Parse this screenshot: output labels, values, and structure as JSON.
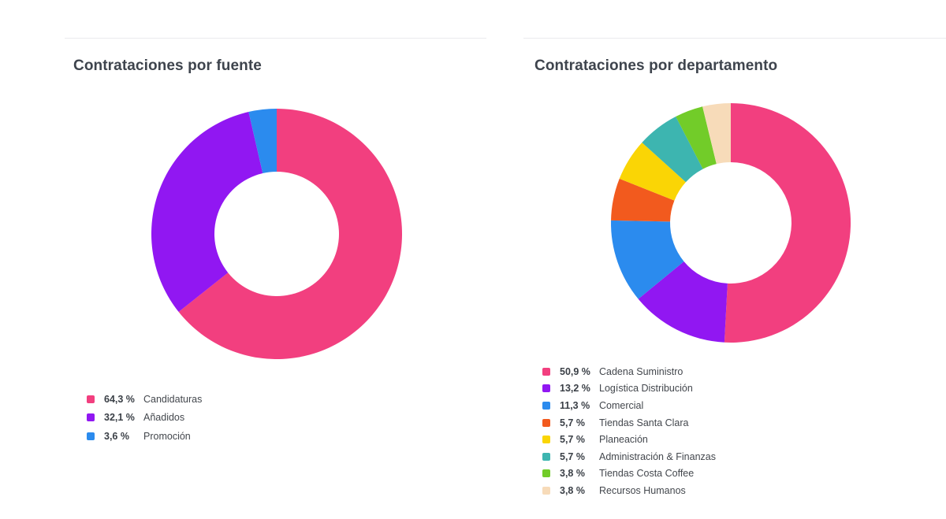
{
  "page": {
    "background_color": "#ffffff",
    "divider_color": "#ebebee",
    "title_color": "#3e444d",
    "legend_text_color": "#3f444a"
  },
  "chart_data": [
    {
      "type": "pie",
      "subtype": "donut",
      "title": "Contrataciones por fuente",
      "labels": [
        "Candidaturas",
        "Añadidos",
        "Promoción"
      ],
      "values": [
        64.3,
        32.1,
        3.6
      ],
      "value_labels": [
        "64,3 %",
        "32,1 %",
        "3,6 %"
      ],
      "colors": [
        "#F23F7F",
        "#9117F2",
        "#2B8BEE"
      ],
      "start_angle": "top",
      "direction": "clockwise",
      "legend_position": "bottom-left"
    },
    {
      "type": "pie",
      "subtype": "donut",
      "title": "Contrataciones por departamento",
      "labels": [
        "Cadena Suministro",
        "Logística Distribución",
        "Comercial",
        "Tiendas Santa Clara",
        "Planeación",
        "Administración & Finanzas",
        "Tiendas Costa Coffee",
        "Recursos Humanos"
      ],
      "values": [
        50.9,
        13.2,
        11.3,
        5.7,
        5.7,
        5.7,
        3.8,
        3.8
      ],
      "value_labels": [
        "50,9 %",
        "13,2 %",
        "11,3 %",
        "5,7 %",
        "5,7 %",
        "5,7 %",
        "3,8 %",
        "3,8 %"
      ],
      "colors": [
        "#F23F7F",
        "#9117F2",
        "#2B8BEE",
        "#F25A1E",
        "#FAD505",
        "#3DB5B0",
        "#72CC29",
        "#F7DBB9"
      ],
      "start_angle": "top",
      "direction": "clockwise",
      "legend_position": "bottom-left"
    }
  ]
}
